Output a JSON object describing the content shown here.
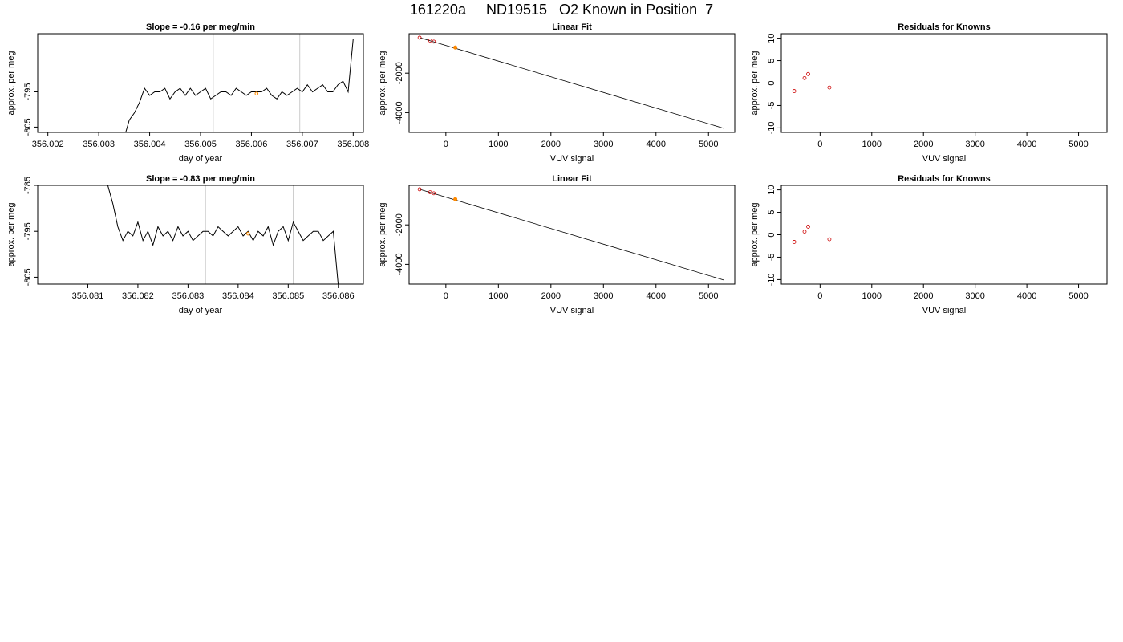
{
  "title": "161220a     ND19515   O2 Known in Position  7",
  "colors": {
    "line": "#000000",
    "grid": "#cccccc",
    "known": "#cc0000",
    "highlight": "#ff8c00"
  },
  "chart_data": [
    {
      "type": "line",
      "title": "Slope =  -0.16  per meg/min",
      "xlabel": "day of year",
      "ylabel": "approx. per meg",
      "xlim": [
        356.0018,
        356.0082
      ],
      "ylim": [
        -806.5,
        -778.5
      ],
      "xticks": [
        "356.002",
        "356.003",
        "356.004",
        "356.005",
        "356.006",
        "356.007",
        "356.008"
      ],
      "yticks": [
        "-805",
        "-795"
      ],
      "vlines": [
        356.00525,
        356.00695
      ],
      "highlight_point": [
        356.0061,
        -795.5
      ],
      "x": [
        356.0035,
        356.0036,
        356.0037,
        356.0038,
        356.0039,
        356.004,
        356.0041,
        356.0042,
        356.0043,
        356.0044,
        356.0045,
        356.0046,
        356.0047,
        356.0048,
        356.0049,
        356.005,
        356.0051,
        356.0052,
        356.0053,
        356.0054,
        356.0055,
        356.0056,
        356.0057,
        356.0058,
        356.0059,
        356.006,
        356.0061,
        356.0062,
        356.0063,
        356.0064,
        356.0065,
        356.0066,
        356.0067,
        356.0068,
        356.0069,
        356.007,
        356.0071,
        356.0072,
        356.0073,
        356.0074,
        356.0075,
        356.0076,
        356.0077,
        356.0078,
        356.0079,
        356.008
      ],
      "y": [
        -808,
        -803,
        -801,
        -798,
        -794,
        -796,
        -795,
        -795,
        -794,
        -797,
        -795,
        -794,
        -796,
        -794,
        -796,
        -795,
        -794,
        -797,
        -796,
        -795,
        -795,
        -796,
        -794,
        -795,
        -796,
        -795,
        -795,
        -795,
        -794,
        -796,
        -797,
        -795,
        -796,
        -795,
        -794,
        -795,
        -793,
        -795,
        -794,
        -793,
        -795,
        -795,
        -793,
        -792,
        -795,
        -780
      ]
    },
    {
      "type": "line",
      "title": "Linear Fit",
      "xlabel": "VUV signal",
      "ylabel": "approx. per meg",
      "xlim": [
        -700,
        5500
      ],
      "ylim": [
        -5000,
        0
      ],
      "xticks": [
        "0",
        "1000",
        "2000",
        "3000",
        "4000",
        "5000"
      ],
      "yticks": [
        "-4000",
        "-2000"
      ],
      "fit_line": {
        "x": [
          -500,
          5300
        ],
        "y": [
          -200,
          -4800
        ]
      },
      "knowns": {
        "x": [
          -500,
          -300,
          -230,
          180
        ],
        "y": [
          -200,
          -350,
          -400,
          -700
        ]
      },
      "highlight_point": [
        180,
        -700
      ]
    },
    {
      "type": "scatter",
      "title": "Residuals for Knowns",
      "xlabel": "VUV signal",
      "ylabel": "approx. per meg",
      "xlim": [
        -750,
        5550
      ],
      "ylim": [
        -11,
        11
      ],
      "xticks": [
        "0",
        "1000",
        "2000",
        "3000",
        "4000",
        "5000"
      ],
      "yticks": [
        "-10",
        "-5",
        "0",
        "5",
        "10"
      ],
      "x": [
        -500,
        -300,
        -230,
        180
      ],
      "y": [
        -1.8,
        1.1,
        2.0,
        -1.0
      ]
    },
    {
      "type": "line",
      "title": "Slope =  -0.83  per meg/min",
      "xlabel": "day of year",
      "ylabel": "approx. per meg",
      "xlim": [
        356.08,
        356.0865
      ],
      "ylim": [
        -806.5,
        -785
      ],
      "xticks": [
        "356.081",
        "356.082",
        "356.083",
        "356.084",
        "356.085",
        "356.086"
      ],
      "yticks": [
        "-805",
        "-795",
        "-785"
      ],
      "vlines": [
        356.08335,
        356.0851
      ],
      "highlight_point": [
        356.0842,
        -795.5
      ],
      "x": [
        356.0814,
        356.0815,
        356.0816,
        356.0817,
        356.0818,
        356.0819,
        356.082,
        356.0821,
        356.0822,
        356.0823,
        356.0824,
        356.0825,
        356.0826,
        356.0827,
        356.0828,
        356.0829,
        356.083,
        356.0831,
        356.0832,
        356.0833,
        356.0834,
        356.0835,
        356.0836,
        356.0837,
        356.0838,
        356.0839,
        356.084,
        356.0841,
        356.0842,
        356.0843,
        356.0844,
        356.0845,
        356.0846,
        356.0847,
        356.0848,
        356.0849,
        356.085,
        356.0851,
        356.0852,
        356.0853,
        356.0854,
        356.0855,
        356.0856,
        356.0857,
        356.0858,
        356.0859,
        356.086
      ],
      "y": [
        -785,
        -789,
        -794,
        -797,
        -795,
        -796,
        -793,
        -797,
        -795,
        -798,
        -794,
        -796,
        -795,
        -797,
        -794,
        -796,
        -795,
        -797,
        -796,
        -795,
        -795,
        -796,
        -794,
        -795,
        -796,
        -795,
        -794,
        -796,
        -795,
        -797,
        -795,
        -796,
        -794,
        -798,
        -795,
        -794,
        -797,
        -793,
        -795,
        -797,
        -796,
        -795,
        -795,
        -797,
        -796,
        -795,
        -807
      ]
    },
    {
      "type": "line",
      "title": "Linear Fit",
      "xlabel": "VUV signal",
      "ylabel": "approx. per meg",
      "xlim": [
        -700,
        5500
      ],
      "ylim": [
        -5000,
        0
      ],
      "xticks": [
        "0",
        "1000",
        "2000",
        "3000",
        "4000",
        "5000"
      ],
      "yticks": [
        "-4000",
        "-2000"
      ],
      "fit_line": {
        "x": [
          -500,
          5300
        ],
        "y": [
          -200,
          -4800
        ]
      },
      "knowns": {
        "x": [
          -500,
          -300,
          -230,
          180
        ],
        "y": [
          -200,
          -350,
          -400,
          -700
        ]
      },
      "highlight_point": [
        180,
        -700
      ]
    },
    {
      "type": "scatter",
      "title": "Residuals for Knowns",
      "xlabel": "VUV signal",
      "ylabel": "approx. per meg",
      "xlim": [
        -750,
        5550
      ],
      "ylim": [
        -11,
        11
      ],
      "xticks": [
        "0",
        "1000",
        "2000",
        "3000",
        "4000",
        "5000"
      ],
      "yticks": [
        "-10",
        "-5",
        "0",
        "5",
        "10"
      ],
      "x": [
        -500,
        -300,
        -230,
        180
      ],
      "y": [
        -1.6,
        0.7,
        1.8,
        -1.0
      ]
    }
  ]
}
